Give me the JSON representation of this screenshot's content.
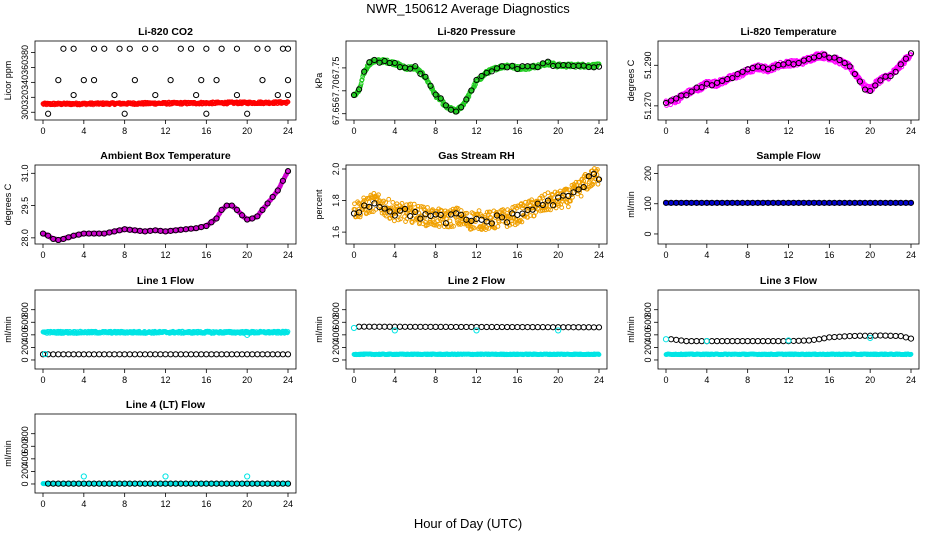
{
  "figure": {
    "title": "NWR_150612  Average Diagnostics",
    "xlabel": "Hour of Day (UTC)"
  },
  "chart_data": [
    {
      "type": "scatter",
      "title": "Li-820 CO2",
      "ylabel": "Licor ppm",
      "xlim": [
        0,
        24
      ],
      "ylim": [
        295,
        390
      ],
      "xticks": [
        0,
        4,
        8,
        12,
        16,
        20,
        24
      ],
      "yticks": [
        300,
        320,
        340,
        360,
        380
      ],
      "series": [
        {
          "name": "co2 dense",
          "color": "#ff0000",
          "kind": "band",
          "x_start": 0,
          "x_end": 24,
          "y_start": 311,
          "y_end": 313,
          "noise": 1.5
        },
        {
          "name": "co2 upper points",
          "color": "#000000",
          "kind": "points",
          "x": [
            2,
            3,
            5,
            6,
            7.5,
            8.5,
            10,
            11,
            13.5,
            14.5,
            16,
            17.5,
            19,
            21,
            22,
            23.5,
            24,
            1.5,
            4,
            5,
            9,
            12.5,
            15.5,
            17,
            21.5,
            24,
            3,
            7,
            11,
            15,
            19,
            23,
            24,
            0.5,
            8,
            16,
            20
          ],
          "y": [
            385,
            385,
            385,
            385,
            385,
            385,
            385,
            385,
            385,
            385,
            385,
            385,
            385,
            385,
            385,
            385,
            385,
            343,
            343,
            343,
            343,
            343,
            343,
            343,
            343,
            343,
            323,
            323,
            323,
            323,
            323,
            323,
            323,
            298,
            298,
            298,
            298
          ]
        }
      ]
    },
    {
      "type": "scatter",
      "title": "Li-820 Pressure",
      "ylabel": "kPa",
      "xlim": [
        0,
        24
      ],
      "ylim": [
        67.645,
        67.8
      ],
      "xticks": [
        0,
        4,
        8,
        12,
        16,
        20,
        24
      ],
      "yticks": [
        67.65,
        67.7,
        67.75
      ],
      "ytick_labels": [
        "67.65",
        "67.70",
        "67.75"
      ],
      "series": [
        {
          "name": "pressure",
          "color": "#22cc22",
          "kind": "curve",
          "x": [
            0,
            0.5,
            1,
            1.5,
            2,
            3,
            4,
            5,
            6,
            7,
            8,
            8.5,
            9,
            9.5,
            10,
            10.5,
            11,
            12,
            13,
            14,
            15,
            16,
            17,
            18,
            19,
            20,
            21,
            22,
            23,
            24
          ],
          "y": [
            67.69,
            67.7,
            67.74,
            67.76,
            67.765,
            67.765,
            67.76,
            67.75,
            67.75,
            67.73,
            67.69,
            67.68,
            67.665,
            67.66,
            67.655,
            67.665,
            67.68,
            67.72,
            67.74,
            67.75,
            67.755,
            67.75,
            67.75,
            67.755,
            67.76,
            67.755,
            67.755,
            67.755,
            67.755,
            67.755
          ],
          "noise": 0.004
        },
        {
          "name": "pressure avg",
          "color": "#000000",
          "kind": "points-on-curve",
          "step": 0.5,
          "noise": 0.004
        }
      ]
    },
    {
      "type": "scatter",
      "title": "Li-820 Temperature",
      "ylabel": "degrees C",
      "xlim": [
        0,
        24
      ],
      "ylim": [
        51.265,
        51.3
      ],
      "xticks": [
        0,
        4,
        8,
        12,
        16,
        20,
        24
      ],
      "yticks": [
        51.27,
        51.29
      ],
      "ytick_labels": [
        "51.270",
        "51.290"
      ],
      "series": [
        {
          "name": "temperature",
          "color": "#ff00ff",
          "kind": "curve",
          "x": [
            0,
            1,
            2,
            3,
            4,
            5,
            6,
            7,
            8,
            9,
            10,
            11,
            12,
            13,
            14,
            15,
            16,
            17,
            18,
            19,
            19.5,
            20,
            21,
            22,
            23,
            24
          ],
          "y": [
            51.271,
            51.273,
            51.276,
            51.278,
            51.281,
            51.281,
            51.283,
            51.285,
            51.287,
            51.289,
            51.288,
            51.29,
            51.291,
            51.291,
            51.293,
            51.295,
            51.294,
            51.292,
            51.289,
            51.283,
            51.279,
            51.278,
            51.283,
            51.285,
            51.29,
            51.296
          ],
          "noise": 0.0015
        },
        {
          "name": "temperature avg",
          "color": "#000000",
          "kind": "points-on-curve",
          "step": 0.5,
          "noise": 0.001
        }
      ]
    },
    {
      "type": "scatter",
      "title": "Ambient Box Temperature",
      "ylabel": "degrees C",
      "xlim": [
        0,
        24
      ],
      "ylim": [
        27.9,
        31.2
      ],
      "xticks": [
        0,
        4,
        8,
        12,
        16,
        20,
        24
      ],
      "yticks": [
        28.0,
        29.5,
        31.0
      ],
      "ytick_labels": [
        "28.0",
        "29.5",
        "31.0"
      ],
      "series": [
        {
          "name": "box temp",
          "color": "#cc00cc",
          "kind": "curve",
          "x": [
            0,
            0.5,
            1,
            1.5,
            2,
            3,
            4,
            5,
            6,
            7,
            8,
            9,
            10,
            11,
            12,
            13,
            14,
            15,
            16,
            17,
            17.5,
            18,
            18.5,
            19,
            19.5,
            20,
            20.5,
            21,
            21.5,
            22,
            23,
            24
          ],
          "y": [
            28.2,
            28.1,
            27.95,
            27.9,
            27.95,
            28.1,
            28.2,
            28.2,
            28.2,
            28.3,
            28.4,
            28.35,
            28.3,
            28.35,
            28.3,
            28.35,
            28.4,
            28.45,
            28.55,
            28.9,
            29.3,
            29.5,
            29.5,
            29.3,
            29.05,
            28.85,
            28.9,
            29.0,
            29.3,
            29.6,
            30.2,
            31.1
          ],
          "noise": 0.02
        },
        {
          "name": "box temp avg",
          "color": "#000000",
          "kind": "points-on-curve",
          "step": 0.5,
          "noise": 0.0
        }
      ]
    },
    {
      "type": "scatter",
      "title": "Gas Stream RH",
      "ylabel": "percent",
      "xlim": [
        0,
        24
      ],
      "ylim": [
        1.55,
        2.0
      ],
      "xticks": [
        0,
        4,
        8,
        12,
        16,
        20,
        24
      ],
      "yticks": [
        1.6,
        1.8,
        2.0
      ],
      "ytick_labels": [
        "1.6",
        "1.8",
        "2.0"
      ],
      "series": [
        {
          "name": "rh",
          "color": "#f0a000",
          "kind": "curve",
          "x": [
            0,
            1,
            2,
            3,
            4,
            5,
            6,
            7,
            8,
            9,
            10,
            11,
            12,
            13,
            14,
            15,
            16,
            17,
            18,
            19,
            20,
            21,
            22,
            23,
            24
          ],
          "y": [
            1.74,
            1.76,
            1.79,
            1.76,
            1.73,
            1.72,
            1.72,
            1.7,
            1.69,
            1.68,
            1.7,
            1.67,
            1.68,
            1.67,
            1.68,
            1.69,
            1.71,
            1.74,
            1.76,
            1.79,
            1.8,
            1.82,
            1.87,
            1.93,
            1.96
          ],
          "noise": 0.06
        },
        {
          "name": "rh avg",
          "color": "#000000",
          "kind": "points-on-curve",
          "step": 0.5,
          "noise": 0.03
        }
      ]
    },
    {
      "type": "scatter",
      "title": "Sample Flow",
      "ylabel": "ml/min",
      "xlim": [
        0,
        24
      ],
      "ylim": [
        -20,
        215
      ],
      "xticks": [
        0,
        4,
        8,
        12,
        16,
        20,
        24
      ],
      "yticks": [
        0,
        100,
        200
      ],
      "series": [
        {
          "name": "sample flow",
          "color": "#0000cc",
          "kind": "band",
          "x_start": 0,
          "x_end": 24,
          "y_start": 103,
          "y_end": 103,
          "noise": 0.5
        },
        {
          "name": "sample flow avg",
          "color": "#000000",
          "kind": "points-on-curve",
          "step": 0.5,
          "noise": 0.0
        }
      ]
    },
    {
      "type": "scatter",
      "title": "Line 1 Flow",
      "ylabel": "ml/min",
      "xlim": [
        0,
        24
      ],
      "ylim": [
        -80,
        1050
      ],
      "xticks": [
        0,
        4,
        8,
        12,
        16,
        20,
        24
      ],
      "yticks": [
        0,
        200,
        400,
        600,
        800
      ],
      "series": [
        {
          "name": "line1 cyan",
          "color": "#00e5e5",
          "kind": "band",
          "x_start": 0,
          "x_end": 24,
          "y_start": 440,
          "y_end": 440,
          "noise": 18
        },
        {
          "name": "line1 black",
          "color": "#000000",
          "kind": "band-points",
          "x_start": 0,
          "x_end": 24,
          "y_start": 90,
          "y_end": 90,
          "step": 0.5
        },
        {
          "name": "line1 cyan low",
          "color": "#00e5e5",
          "kind": "points",
          "x": [
            0.2,
            20
          ],
          "y": [
            95,
            400
          ]
        }
      ]
    },
    {
      "type": "scatter",
      "title": "Line 2 Flow",
      "ylabel": "ml/min",
      "xlim": [
        0,
        24
      ],
      "ylim": [
        -80,
        1050
      ],
      "xticks": [
        0,
        4,
        8,
        12,
        16,
        20,
        24
      ],
      "yticks": [
        0,
        200,
        400,
        600,
        800
      ],
      "series": [
        {
          "name": "line2 cyan",
          "color": "#00e5e5",
          "kind": "band",
          "x_start": 0,
          "x_end": 24,
          "y_start": 90,
          "y_end": 90,
          "noise": 6
        },
        {
          "name": "line2 black",
          "color": "#000000",
          "kind": "band-points",
          "x_start": 0.5,
          "x_end": 24,
          "y_start": 530,
          "y_end": 520,
          "step": 0.5
        },
        {
          "name": "line2 cyan high",
          "color": "#00e5e5",
          "kind": "points",
          "x": [
            0,
            4,
            12,
            20
          ],
          "y": [
            510,
            470,
            470,
            470
          ]
        }
      ]
    },
    {
      "type": "scatter",
      "title": "Line 3 Flow",
      "ylabel": "ml/min",
      "xlim": [
        0,
        24
      ],
      "ylim": [
        -80,
        1050
      ],
      "xticks": [
        0,
        4,
        8,
        12,
        16,
        20,
        24
      ],
      "yticks": [
        0,
        200,
        400,
        600,
        800
      ],
      "series": [
        {
          "name": "line3 cyan",
          "color": "#00e5e5",
          "kind": "band",
          "x_start": 0,
          "x_end": 24,
          "y_start": 90,
          "y_end": 90,
          "noise": 6
        },
        {
          "name": "line3 black",
          "color": "#000000",
          "kind": "curve-points",
          "x": [
            0.5,
            2,
            4,
            8,
            12,
            14,
            15,
            16,
            17,
            18,
            19,
            20,
            21,
            22,
            23,
            24
          ],
          "y": [
            330,
            300,
            300,
            300,
            300,
            310,
            330,
            360,
            370,
            380,
            385,
            385,
            390,
            385,
            380,
            340
          ],
          "step": 0.5
        },
        {
          "name": "line3 cyan high",
          "color": "#00e5e5",
          "kind": "points",
          "x": [
            0,
            4,
            12,
            20
          ],
          "y": [
            330,
            300,
            310,
            350
          ]
        }
      ]
    },
    {
      "type": "scatter",
      "title": "Line 4 (LT) Flow",
      "ylabel": "ml/min",
      "xlim": [
        0,
        24
      ],
      "ylim": [
        -80,
        1050
      ],
      "xticks": [
        0,
        4,
        8,
        12,
        16,
        20,
        24
      ],
      "yticks": [
        0,
        200,
        400,
        600,
        800
      ],
      "series": [
        {
          "name": "line4 cyan",
          "color": "#00e5e5",
          "kind": "band",
          "x_start": 0,
          "x_end": 24,
          "y_start": 5,
          "y_end": 5,
          "noise": 2
        },
        {
          "name": "line4 black",
          "color": "#000000",
          "kind": "band-points",
          "x_start": 0.5,
          "x_end": 24,
          "y_start": 5,
          "y_end": 5,
          "step": 0.5
        },
        {
          "name": "line4 cyan high",
          "color": "#00e5e5",
          "kind": "points",
          "x": [
            4,
            12,
            20
          ],
          "y": [
            120,
            120,
            120
          ]
        }
      ]
    }
  ]
}
